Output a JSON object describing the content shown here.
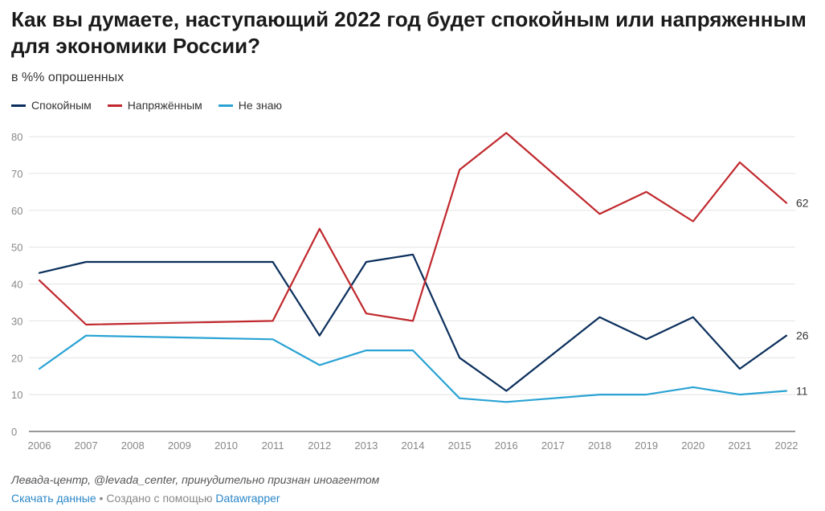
{
  "title": "Как вы думаете, наступающий 2022 год будет спокойным или напряженным для экономики России?",
  "subtitle": "в %% опрошенных",
  "source": "Левада-центр, @levada_center, принудительно признан иноагентом",
  "footer": {
    "download_label": "Скачать данные",
    "separator": " • Создано с помощью ",
    "tool_label": "Datawrapper"
  },
  "chart_data": {
    "type": "line",
    "x": [
      2006,
      2007,
      2008,
      2009,
      2010,
      2011,
      2012,
      2013,
      2014,
      2015,
      2016,
      2017,
      2018,
      2019,
      2020,
      2021,
      2022
    ],
    "x_tick_labels": [
      "2006",
      "2007",
      "2008",
      "2009",
      "2010",
      "2011",
      "2012",
      "2013",
      "2014",
      "2015",
      "2016",
      "2017",
      "2018",
      "2019",
      "2020",
      "2021",
      "2022"
    ],
    "y_ticks": [
      0,
      10,
      20,
      30,
      40,
      50,
      60,
      70,
      80
    ],
    "ylim": [
      0,
      80
    ],
    "grid": true,
    "legend_position": "top-left",
    "series": [
      {
        "name": "Спокойным",
        "color": "#0b2f5c",
        "points": [
          [
            2006,
            43
          ],
          [
            2007,
            46
          ],
          [
            2011,
            46
          ],
          [
            2012,
            26
          ],
          [
            2013,
            46
          ],
          [
            2014,
            48
          ],
          [
            2015,
            20
          ],
          [
            2016,
            11
          ],
          [
            2018,
            31
          ],
          [
            2019,
            25
          ],
          [
            2020,
            31
          ],
          [
            2021,
            17
          ],
          [
            2022,
            26
          ]
        ],
        "end_label": "26"
      },
      {
        "name": "Напряжённым",
        "color": "#c0282d",
        "points": [
          [
            2006,
            41
          ],
          [
            2007,
            29
          ],
          [
            2011,
            30
          ],
          [
            2012,
            55
          ],
          [
            2013,
            32
          ],
          [
            2014,
            30
          ],
          [
            2015,
            71
          ],
          [
            2016,
            81
          ],
          [
            2018,
            59
          ],
          [
            2019,
            65
          ],
          [
            2020,
            57
          ],
          [
            2021,
            73
          ],
          [
            2022,
            62
          ]
        ],
        "end_label": "62"
      },
      {
        "name": "Не знаю",
        "color": "#2aa3d4",
        "points": [
          [
            2006,
            17
          ],
          [
            2007,
            26
          ],
          [
            2011,
            25
          ],
          [
            2012,
            18
          ],
          [
            2013,
            22
          ],
          [
            2014,
            22
          ],
          [
            2015,
            9
          ],
          [
            2016,
            8
          ],
          [
            2018,
            10
          ],
          [
            2019,
            10
          ],
          [
            2020,
            12
          ],
          [
            2021,
            10
          ],
          [
            2022,
            11
          ]
        ],
        "end_label": "11"
      }
    ]
  }
}
